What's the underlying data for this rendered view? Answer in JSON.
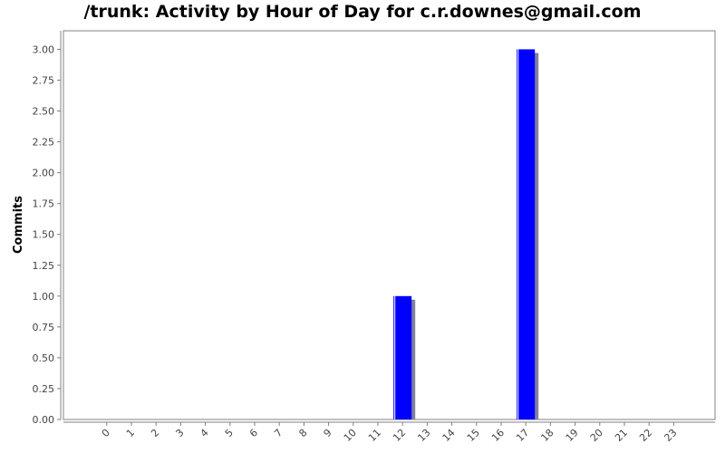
{
  "chart_data": {
    "type": "bar",
    "title": "/trunk: Activity by Hour of Day for c.r.downes@gmail.com",
    "xlabel": "",
    "ylabel": "Commits",
    "categories": [
      "0",
      "1",
      "2",
      "3",
      "4",
      "5",
      "6",
      "7",
      "8",
      "9",
      "10",
      "11",
      "12",
      "13",
      "14",
      "15",
      "16",
      "17",
      "18",
      "19",
      "20",
      "21",
      "22",
      "23"
    ],
    "values": [
      0,
      0,
      0,
      0,
      0,
      0,
      0,
      0,
      0,
      0,
      0,
      0,
      1,
      0,
      0,
      0,
      0,
      3,
      0,
      0,
      0,
      0,
      0,
      0
    ],
    "ylim": [
      0,
      3.15
    ],
    "yticks": [
      "0.00",
      "0.25",
      "0.50",
      "0.75",
      "1.00",
      "1.25",
      "1.50",
      "1.75",
      "2.00",
      "2.25",
      "2.50",
      "2.75",
      "3.00"
    ],
    "grid": false,
    "bar_color": "#0000ff",
    "shadow_color": "#8080a0"
  }
}
